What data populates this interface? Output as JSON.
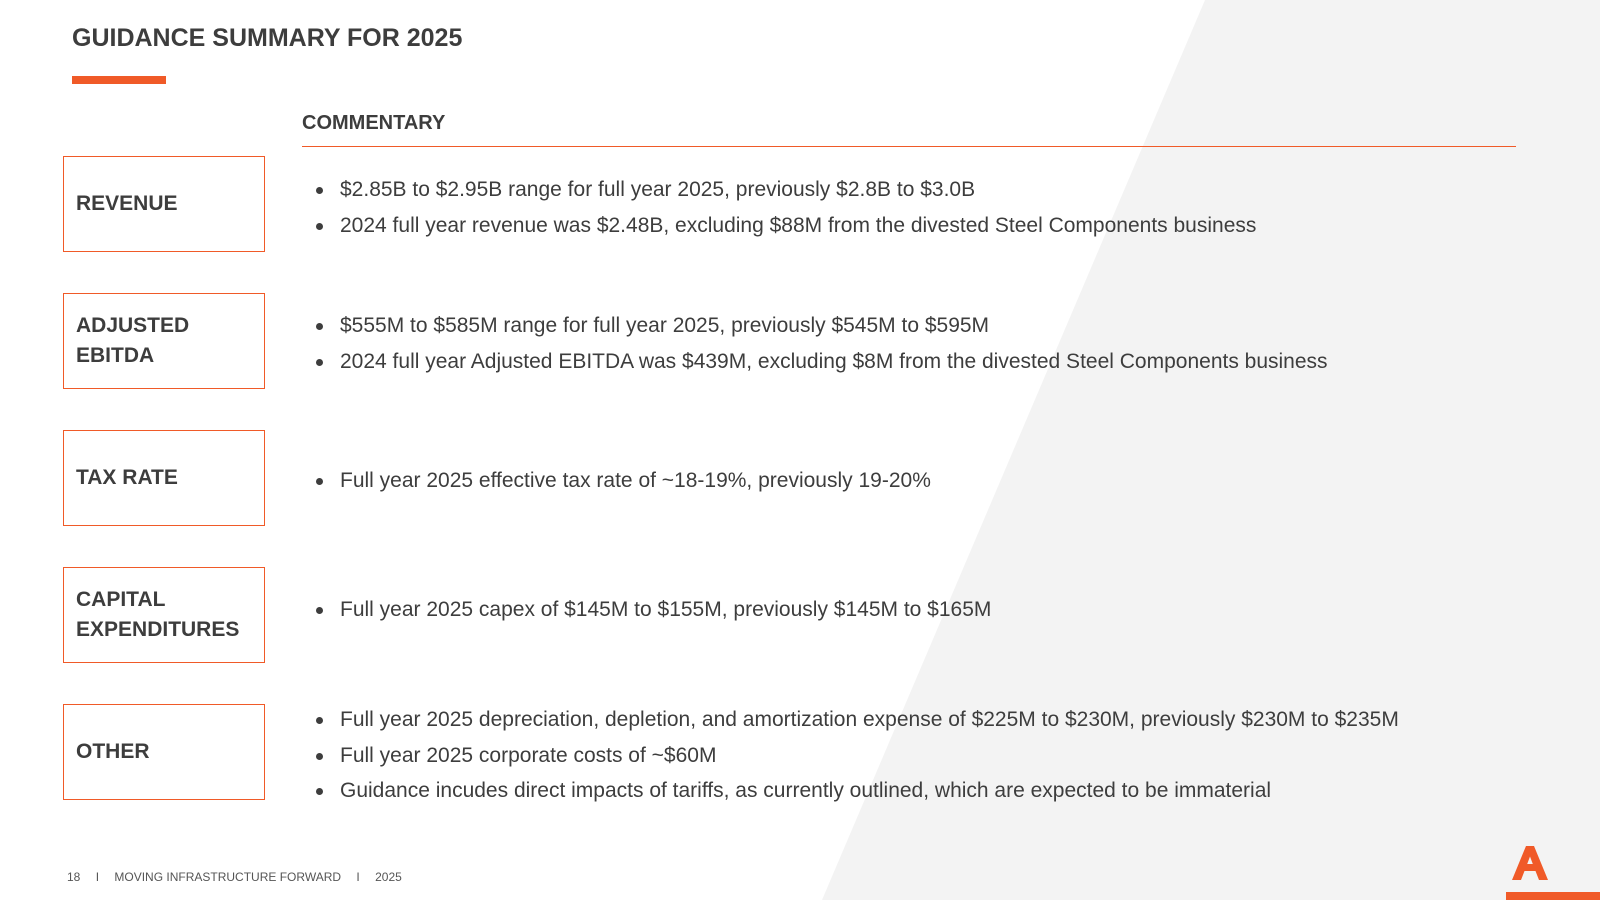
{
  "slide": {
    "title": "GUIDANCE SUMMARY FOR 2025",
    "accent_color": "#f05a28",
    "text_color": "#3d3d3d"
  },
  "commentary": {
    "header": "COMMENTARY"
  },
  "rows": [
    {
      "label": "REVENUE",
      "bullets": [
        "$2.85B to $2.95B range for full year 2025, previously $2.8B to $3.0B",
        "2024 full year revenue was $2.48B, excluding $88M from the divested Steel Components business"
      ]
    },
    {
      "label": "ADJUSTED\nEBITDA",
      "bullets": [
        "$555M to $585M range for full year 2025, previously $545M to $595M",
        "2024 full year Adjusted EBITDA was $439M, excluding $8M from the divested Steel Components business"
      ]
    },
    {
      "label": "TAX RATE",
      "bullets": [
        "Full year 2025 effective tax rate of ~18-19%, previously 19-20%"
      ]
    },
    {
      "label": "CAPITAL\nEXPENDITURES",
      "bullets": [
        "Full year 2025 capex of $145M to $155M, previously $145M to $165M"
      ]
    },
    {
      "label": "OTHER",
      "bullets": [
        "Full year 2025 depreciation, depletion, and amortization expense of $225M to $230M, previously $230M to $235M",
        "Full year 2025 corporate costs of ~$60M",
        "Guidance incudes direct impacts of tariffs, as currently outlined, which are expected to be immaterial"
      ]
    }
  ],
  "footer": {
    "page_number": "18",
    "separator": "I",
    "tagline": "MOVING INFRASTRUCTURE FORWARD",
    "year": "2025"
  },
  "logo": {
    "icon": "company-a-logo-icon"
  }
}
